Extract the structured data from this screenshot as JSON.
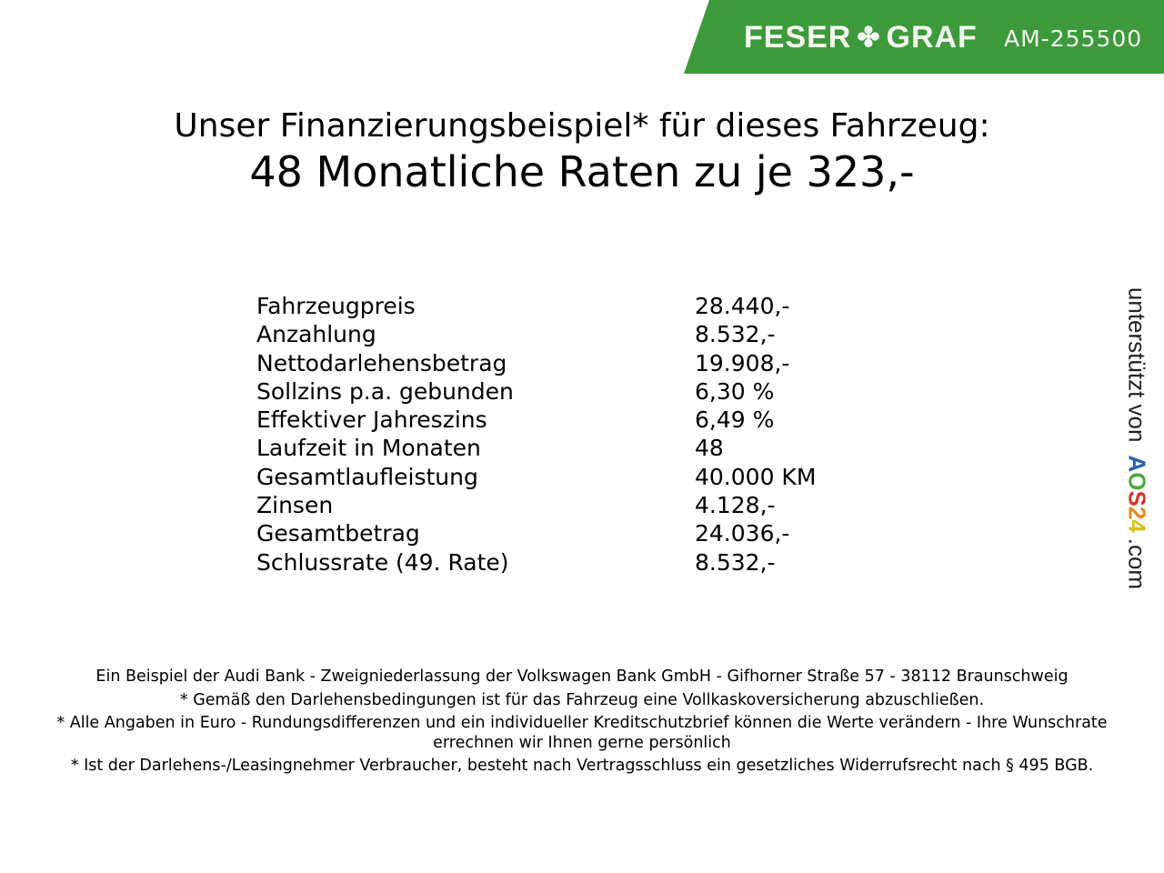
{
  "header": {
    "brand_left": "FESER",
    "brand_right": "GRAF",
    "brand_icon": "clover-icon",
    "code": "AM-255500",
    "color": "#3d9a3a"
  },
  "title": "Unser Finanzierungsbeispiel* für dieses Fahrzeug:",
  "subtitle": "48 Monatliche Raten zu je 323,-",
  "rows": [
    {
      "label": "Fahrzeugpreis",
      "value": "28.440,-"
    },
    {
      "label": "Anzahlung",
      "value": "8.532,-"
    },
    {
      "label": "Nettodarlehensbetrag",
      "value": "19.908,-"
    },
    {
      "label": "Sollzins p.a. gebunden",
      "value": "6,30 %"
    },
    {
      "label": "Effektiver Jahreszins",
      "value": "6,49 %"
    },
    {
      "label": "Laufzeit in Monaten",
      "value": "48"
    },
    {
      "label": "Gesamtlaufleistung",
      "value": "40.000 KM"
    },
    {
      "label": "Zinsen",
      "value": "4.128,-"
    },
    {
      "label": "Gesamtbetrag",
      "value": "24.036,-"
    },
    {
      "label": "Schlussrate (49. Rate)",
      "value": "8.532,-"
    }
  ],
  "footer": [
    "Ein Beispiel der Audi Bank - Zweigniederlassung der Volkswagen Bank GmbH - Gifhorner Straße 57 - 38112 Braunschweig",
    "* Gemäß den Darlehensbedingungen ist für das Fahrzeug eine Vollkaskoversicherung abzuschließen.",
    "* Alle Angaben in Euro - Rundungsdifferenzen und ein individueller Kreditschutzbrief können die Werte verändern - Ihre Wunschrate errechnen wir Ihnen gerne persönlich",
    "* Ist der Darlehens-/Leasingnehmer Verbraucher, besteht nach Vertragsschluss ein gesetzliches Widerrufsrecht nach § 495 BGB."
  ],
  "side": {
    "prefix": "unterstützt von",
    "logo": "AOS24",
    "suffix": ".com"
  }
}
